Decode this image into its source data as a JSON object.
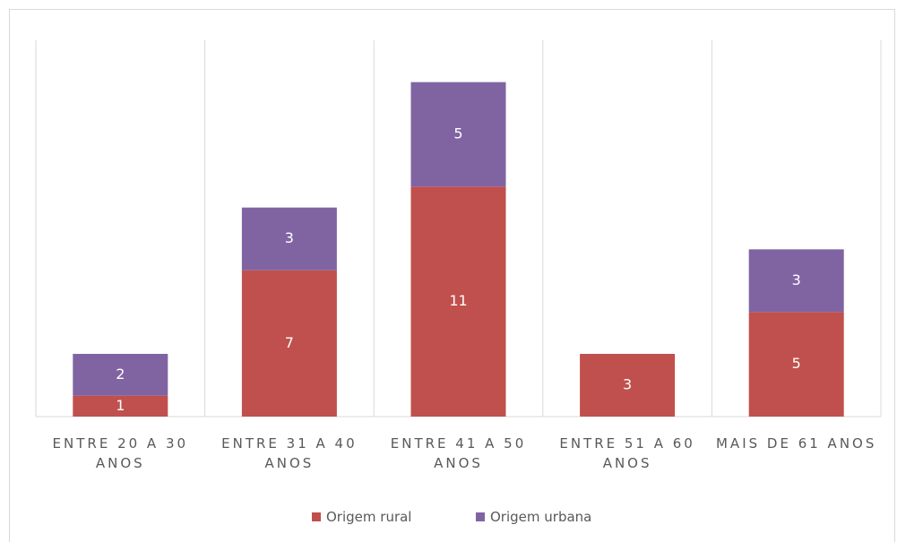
{
  "chart_data": {
    "type": "stacked_bar",
    "categories": [
      "ENTRE 20 A 30 ANOS",
      "ENTRE 31 A 40 ANOS",
      "ENTRE 41 A 50 ANOS",
      "ENTRE 51 A 60 ANOS",
      "MAIS DE 61 ANOS"
    ],
    "series": [
      {
        "name": "Origem rural",
        "color": "#c0504d",
        "values": [
          1,
          7,
          11,
          3,
          5
        ]
      },
      {
        "name": "Origem urbana",
        "color": "#8064a2",
        "values": [
          2,
          3,
          5,
          0,
          3
        ]
      }
    ],
    "ylim": [
      0,
      18
    ],
    "legend": "bottom"
  }
}
